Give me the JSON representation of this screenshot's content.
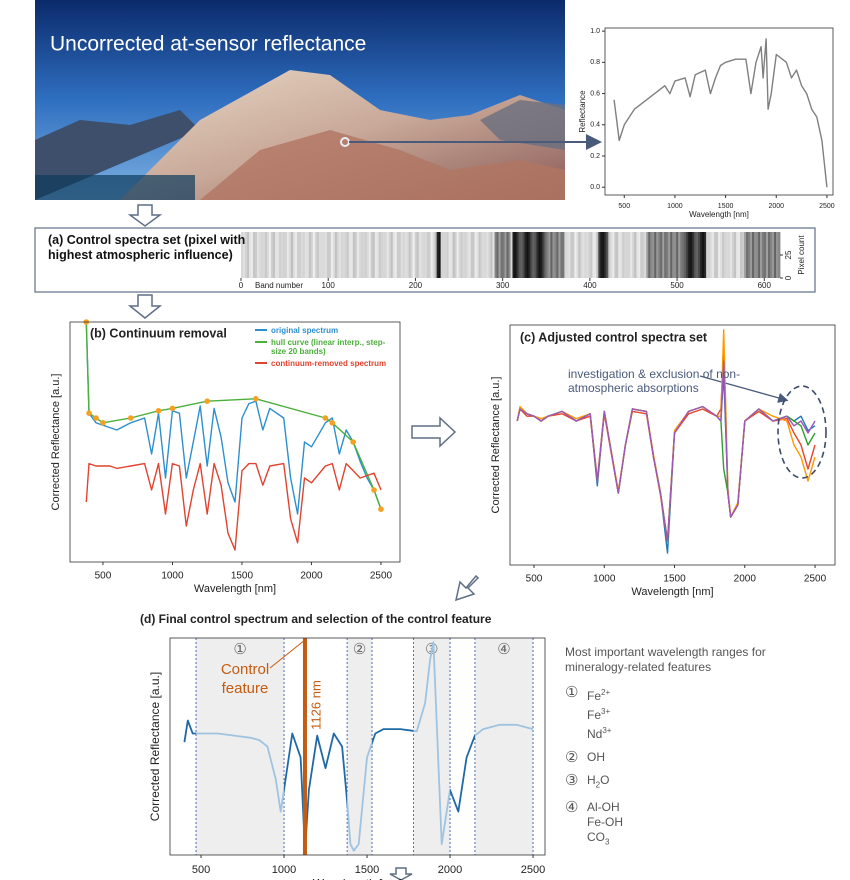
{
  "photo": {
    "title": "Uncorrected at-sensor reflectance"
  },
  "chart_data": [
    {
      "type": "line",
      "xlabel": "Wavelength [nm]",
      "ylabel": "Reflectance",
      "x": [
        400,
        450,
        500,
        550,
        600,
        700,
        800,
        900,
        950,
        1000,
        1100,
        1150,
        1200,
        1300,
        1350,
        1400,
        1450,
        1500,
        1600,
        1700,
        1750,
        1800,
        1850,
        1870,
        1900,
        1920,
        1950,
        2000,
        2100,
        2150,
        2200,
        2250,
        2300,
        2350,
        2400,
        2450,
        2500
      ],
      "series": [
        {
          "color": "#7f7f7f",
          "values": [
            0.56,
            0.3,
            0.4,
            0.45,
            0.5,
            0.55,
            0.6,
            0.65,
            0.6,
            0.68,
            0.7,
            0.58,
            0.72,
            0.75,
            0.6,
            0.7,
            0.78,
            0.8,
            0.82,
            0.82,
            0.6,
            0.8,
            0.9,
            0.7,
            0.95,
            0.5,
            0.6,
            0.85,
            0.8,
            0.7,
            0.75,
            0.65,
            0.6,
            0.5,
            0.45,
            0.3,
            0.0
          ]
        }
      ],
      "xlim": [
        310,
        2560
      ],
      "xticks": [
        500,
        1000,
        1500,
        2000,
        2500
      ],
      "ylim": [
        -0.05,
        1.02
      ],
      "yticks": [
        {
          "value": 0,
          "label": "0.0"
        },
        0.2,
        0.4,
        0.6,
        0.8,
        {
          "value": 1,
          "label": "1.0"
        }
      ]
    },
    {
      "type": "strip",
      "title": "(a) Control spectra set (pixel with highest atmospheric influence)",
      "xlabel": "Band number",
      "ylabel": "Pixel count",
      "xlim": [
        0,
        618
      ],
      "xticks": [
        0,
        100,
        200,
        300,
        400,
        500,
        600
      ],
      "ylim": [
        0,
        50
      ],
      "yticks": [
        0,
        25
      ]
    },
    {
      "type": "line",
      "title": "(b) Continuum removal",
      "xlabel": "Wavelength [nm]",
      "ylabel": "Corrected Reflectance [a.u.]",
      "x": [
        380,
        400,
        450,
        500,
        550,
        600,
        700,
        800,
        850,
        900,
        950,
        1000,
        1050,
        1100,
        1150,
        1200,
        1250,
        1300,
        1350,
        1400,
        1450,
        1500,
        1550,
        1600,
        1650,
        1700,
        1800,
        1850,
        1900,
        1950,
        2000,
        2100,
        2150,
        2200,
        2250,
        2300,
        2350,
        2400,
        2450,
        2500
      ],
      "series": [
        {
          "name": "original spectrum",
          "color": "#2e8fcf",
          "values": [
            1.0,
            0.62,
            0.58,
            0.57,
            0.56,
            0.55,
            0.58,
            0.6,
            0.45,
            0.62,
            0.35,
            0.63,
            0.62,
            0.35,
            0.5,
            0.65,
            0.4,
            0.64,
            0.52,
            0.33,
            0.25,
            0.6,
            0.66,
            0.67,
            0.55,
            0.64,
            0.6,
            0.35,
            0.2,
            0.5,
            0.48,
            0.58,
            0.6,
            0.45,
            0.55,
            0.5,
            0.42,
            0.35,
            0.3,
            0.22
          ]
        },
        {
          "name": "hull curve (linear interp., step-size 20 bands)",
          "color": "#4caf3c",
          "marker_color": "#f5a021",
          "x": [
            380,
            400,
            450,
            500,
            700,
            900,
            1000,
            1250,
            1600,
            2100,
            2150,
            2300,
            2450,
            2500
          ],
          "values": [
            1.0,
            0.62,
            0.6,
            0.58,
            0.6,
            0.63,
            0.64,
            0.67,
            0.68,
            0.6,
            0.58,
            0.5,
            0.3,
            0.22
          ]
        },
        {
          "name": "continuum-removed spectrum",
          "color": "#e0432f",
          "values": [
            0.25,
            0.41,
            0.4,
            0.4,
            0.4,
            0.39,
            0.4,
            0.41,
            0.3,
            0.41,
            0.2,
            0.41,
            0.4,
            0.15,
            0.3,
            0.41,
            0.2,
            0.41,
            0.32,
            0.12,
            0.05,
            0.38,
            0.41,
            0.41,
            0.32,
            0.4,
            0.41,
            0.18,
            0.08,
            0.35,
            0.33,
            0.4,
            0.41,
            0.3,
            0.41,
            0.38,
            0.35,
            0.36,
            0.37,
            0.3
          ]
        }
      ],
      "xlim": [
        263,
        2637
      ],
      "xticks": [
        500,
        1000,
        1500,
        2000,
        2500
      ],
      "ylim": [
        0,
        1
      ]
    },
    {
      "type": "line",
      "title": "(c) Adjusted control spectra set",
      "xlabel": "Wavelength [nm]",
      "ylabel": "Corrected Reflectance [a.u.]",
      "annotation": "investigation & exclusion of non-atmospheric absorptions",
      "x": [
        380,
        400,
        450,
        500,
        550,
        600,
        700,
        800,
        900,
        950,
        1000,
        1100,
        1150,
        1200,
        1300,
        1350,
        1400,
        1450,
        1500,
        1600,
        1700,
        1800,
        1830,
        1850,
        1880,
        1900,
        1950,
        2000,
        2100,
        2200,
        2300,
        2350,
        2400,
        2450,
        2500
      ],
      "series": [
        {
          "color": "#1f77b4",
          "values": [
            0.6,
            0.65,
            0.63,
            0.62,
            0.6,
            0.62,
            0.64,
            0.6,
            0.63,
            0.33,
            0.64,
            0.3,
            0.5,
            0.65,
            0.64,
            0.45,
            0.3,
            0.05,
            0.55,
            0.64,
            0.66,
            0.62,
            0.6,
            0.8,
            0.3,
            0.2,
            0.25,
            0.6,
            0.65,
            0.6,
            0.62,
            0.6,
            0.62,
            0.56,
            0.58
          ]
        },
        {
          "color": "#2ca02c",
          "values": [
            0.6,
            0.65,
            0.63,
            0.62,
            0.6,
            0.62,
            0.64,
            0.6,
            0.63,
            0.35,
            0.64,
            0.3,
            0.5,
            0.65,
            0.64,
            0.45,
            0.3,
            0.1,
            0.55,
            0.64,
            0.66,
            0.62,
            0.6,
            0.4,
            0.3,
            0.2,
            0.25,
            0.6,
            0.65,
            0.6,
            0.62,
            0.6,
            0.58,
            0.5,
            0.55
          ]
        },
        {
          "color": "#e8452c",
          "values": [
            0.6,
            0.65,
            0.62,
            0.62,
            0.6,
            0.62,
            0.63,
            0.6,
            0.62,
            0.35,
            0.63,
            0.3,
            0.5,
            0.64,
            0.63,
            0.45,
            0.29,
            0.1,
            0.55,
            0.63,
            0.65,
            0.62,
            0.65,
            0.9,
            0.3,
            0.2,
            0.25,
            0.6,
            0.64,
            0.6,
            0.61,
            0.55,
            0.5,
            0.4,
            0.5
          ]
        },
        {
          "color": "#ff9900",
          "values": [
            0.6,
            0.66,
            0.63,
            0.62,
            0.61,
            0.62,
            0.64,
            0.61,
            0.63,
            0.36,
            0.64,
            0.31,
            0.5,
            0.65,
            0.64,
            0.46,
            0.3,
            0.1,
            0.56,
            0.64,
            0.66,
            0.62,
            0.62,
            0.98,
            0.32,
            0.2,
            0.26,
            0.6,
            0.65,
            0.62,
            0.6,
            0.5,
            0.45,
            0.35,
            0.45
          ]
        },
        {
          "color": "#9b59b6",
          "values": [
            0.6,
            0.65,
            0.63,
            0.62,
            0.6,
            0.62,
            0.64,
            0.6,
            0.63,
            0.35,
            0.64,
            0.3,
            0.5,
            0.65,
            0.64,
            0.45,
            0.3,
            0.1,
            0.55,
            0.64,
            0.66,
            0.62,
            0.6,
            0.85,
            0.3,
            0.2,
            0.25,
            0.6,
            0.65,
            0.6,
            0.62,
            0.58,
            0.6,
            0.55,
            0.6
          ]
        }
      ],
      "xlim": [
        329,
        2642
      ],
      "xticks": [
        500,
        1000,
        1500,
        2000,
        2500
      ],
      "ylim": [
        0,
        1
      ]
    },
    {
      "type": "line",
      "title": "(d) Final control spectrum and selection of the control feature",
      "xlabel": "Wavelength [nm]",
      "ylabel": "Corrected Reflectance [a.u.]",
      "x": [
        400,
        420,
        450,
        500,
        600,
        700,
        800,
        850,
        900,
        950,
        980,
        1000,
        1050,
        1100,
        1126,
        1150,
        1200,
        1250,
        1300,
        1350,
        1380,
        1400,
        1420,
        1450,
        1500,
        1550,
        1600,
        1700,
        1800,
        1850,
        1880,
        1900,
        1920,
        1950,
        2000,
        2050,
        2100,
        2150,
        2200,
        2300,
        2400,
        2500
      ],
      "series": [
        {
          "color": "#1f6aa5",
          "band_color": "#9ec4e2",
          "values": [
            0.52,
            0.62,
            0.56,
            0.56,
            0.56,
            0.55,
            0.54,
            0.53,
            0.5,
            0.35,
            0.2,
            0.3,
            0.56,
            0.45,
            0.02,
            0.3,
            0.55,
            0.4,
            0.56,
            0.5,
            0.25,
            0.05,
            0.02,
            0.05,
            0.45,
            0.56,
            0.58,
            0.58,
            0.57,
            0.7,
            0.9,
            0.98,
            0.6,
            0.05,
            0.3,
            0.2,
            0.45,
            0.55,
            0.58,
            0.6,
            0.6,
            0.58
          ]
        }
      ],
      "bands": [
        {
          "label": "①",
          "range": [
            470,
            1000
          ]
        },
        {
          "label": "②",
          "range": [
            1380,
            1530
          ]
        },
        {
          "label": "③",
          "range": [
            1780,
            2000
          ]
        },
        {
          "label": "④",
          "range": [
            2150,
            2500
          ]
        }
      ],
      "control_feature": {
        "text": "Control feature",
        "value": 1126,
        "label": "1126 nm",
        "color": "#c55a11"
      },
      "xlim": [
        313,
        2572
      ],
      "xticks": [
        500,
        1000,
        1500,
        2000,
        2500
      ],
      "ylim": [
        0,
        1
      ]
    }
  ],
  "side_notes": {
    "title": "Most important wavelength ranges for mineralogy-related features",
    "items": [
      {
        "symbol": "①",
        "lines": [
          [
            {
              "text": "Fe"
            },
            {
              "sup": "2+"
            }
          ],
          [
            {
              "text": "Fe"
            },
            {
              "sup": "3+"
            }
          ],
          [
            {
              "text": "Nd"
            },
            {
              "sup": "3+"
            }
          ]
        ]
      },
      {
        "symbol": "②",
        "lines": [
          [
            {
              "text": "OH"
            }
          ]
        ]
      },
      {
        "symbol": "③",
        "lines": [
          [
            {
              "text": "H"
            },
            {
              "sub": "2"
            },
            {
              "text": "O"
            }
          ]
        ]
      },
      {
        "symbol": "④",
        "lines": [
          [
            {
              "text": "Al-OH"
            }
          ],
          [
            {
              "text": "Fe-OH"
            }
          ],
          [
            {
              "text": "CO"
            },
            {
              "sub": "3"
            }
          ]
        ]
      }
    ]
  }
}
